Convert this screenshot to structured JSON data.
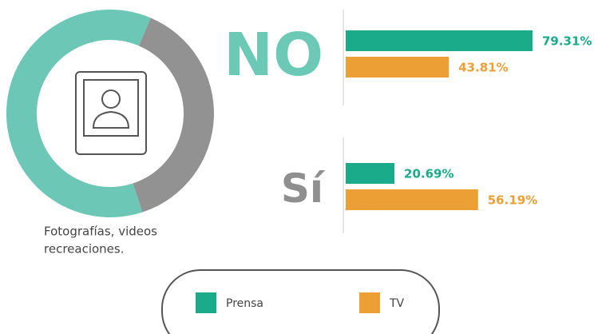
{
  "chart_data": {
    "type": "bar",
    "orientation": "horizontal",
    "categories": [
      "NO",
      "Sí"
    ],
    "series": [
      {
        "name": "Prensa",
        "color": "#1aab8b",
        "values": [
          79.31,
          20.69
        ],
        "value_labels": [
          "79.31%",
          "20.69%"
        ]
      },
      {
        "name": "TV",
        "color": "#eb9f35",
        "values": [
          43.81,
          56.19
        ],
        "value_labels": [
          "43.81%",
          "56.19%"
        ]
      }
    ],
    "xlim": [
      0,
      100
    ],
    "category_colors": [
      "#6cc9b6",
      "#8f8f8f"
    ],
    "donut": {
      "label_lines": [
        "Fotografías, videos",
        "recreaciones."
      ],
      "values": [
        38.6,
        61.4
      ],
      "colors": [
        "#929292",
        "#6cc7b7"
      ]
    }
  }
}
